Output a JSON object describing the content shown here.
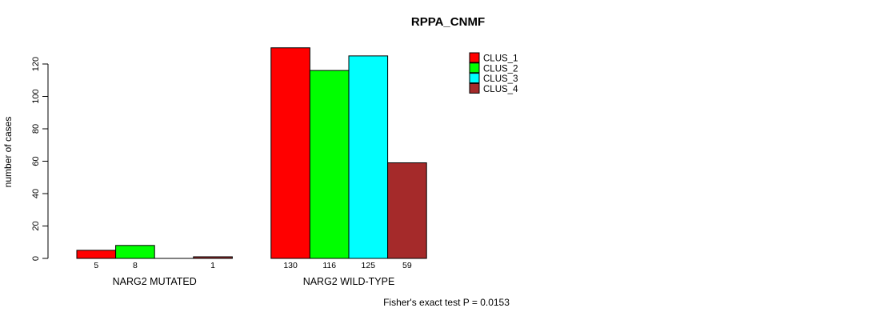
{
  "chart_data": {
    "type": "bar",
    "title": "RPPA_CNMF",
    "ylabel": "number of cases",
    "xlabel": "",
    "ylim": [
      0,
      130
    ],
    "yticks": [
      0,
      20,
      40,
      60,
      80,
      100,
      120
    ],
    "grid": false,
    "legend_position": "top-right",
    "bar_border_color": "#000000",
    "background_color": "#ffffff",
    "series": [
      {
        "name": "CLUS_1",
        "color": "#FF0000"
      },
      {
        "name": "CLUS_2",
        "color": "#00FF00"
      },
      {
        "name": "CLUS_3",
        "color": "#00FFFF"
      },
      {
        "name": "CLUS_4",
        "color": "#A52A2A"
      }
    ],
    "categories": [
      "NARG2 MUTATED",
      "NARG2 WILD-TYPE"
    ],
    "groups": [
      {
        "label": "NARG2 MUTATED",
        "values": [
          5,
          8,
          0,
          1
        ],
        "bar_labels": [
          "5",
          "8",
          "",
          "1"
        ]
      },
      {
        "label": "NARG2 WILD-TYPE",
        "values": [
          130,
          116,
          125,
          59
        ],
        "bar_labels": [
          "130",
          "116",
          "125",
          "59"
        ]
      }
    ],
    "footnote": "Fisher's exact test P = 0.0153"
  }
}
